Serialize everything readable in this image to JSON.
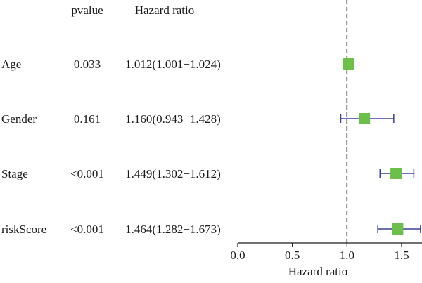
{
  "chart_data": {
    "type": "forest",
    "column_headers": {
      "pvalue": "pvalue",
      "hazard_ratio": "Hazard ratio"
    },
    "xlabel": "Hazard ratio",
    "xlim": [
      0.0,
      1.7
    ],
    "xticks": [
      "0.0",
      "0.5",
      "1.0",
      "1.5"
    ],
    "reference_line": 1.0,
    "rows": [
      {
        "name": "Age",
        "pvalue": "0.033",
        "hr_text": "1.012(1.001−1.024)",
        "hr": 1.012,
        "lower": 1.001,
        "upper": 1.024
      },
      {
        "name": "Gender",
        "pvalue": "0.161",
        "hr_text": "1.160(0.943−1.428)",
        "hr": 1.16,
        "lower": 0.943,
        "upper": 1.428
      },
      {
        "name": "Stage",
        "pvalue": "<0.001",
        "hr_text": "1.449(1.302−1.612)",
        "hr": 1.449,
        "lower": 1.302,
        "upper": 1.612
      },
      {
        "name": "riskScore",
        "pvalue": "<0.001",
        "hr_text": "1.464(1.282−1.673)",
        "hr": 1.464,
        "lower": 1.282,
        "upper": 1.673
      }
    ],
    "colors": {
      "marker": "#6cbf4a",
      "whisker": "#3b3f9e",
      "axis": "#1a1a1a",
      "reference_line": "#1a1a1a"
    }
  }
}
